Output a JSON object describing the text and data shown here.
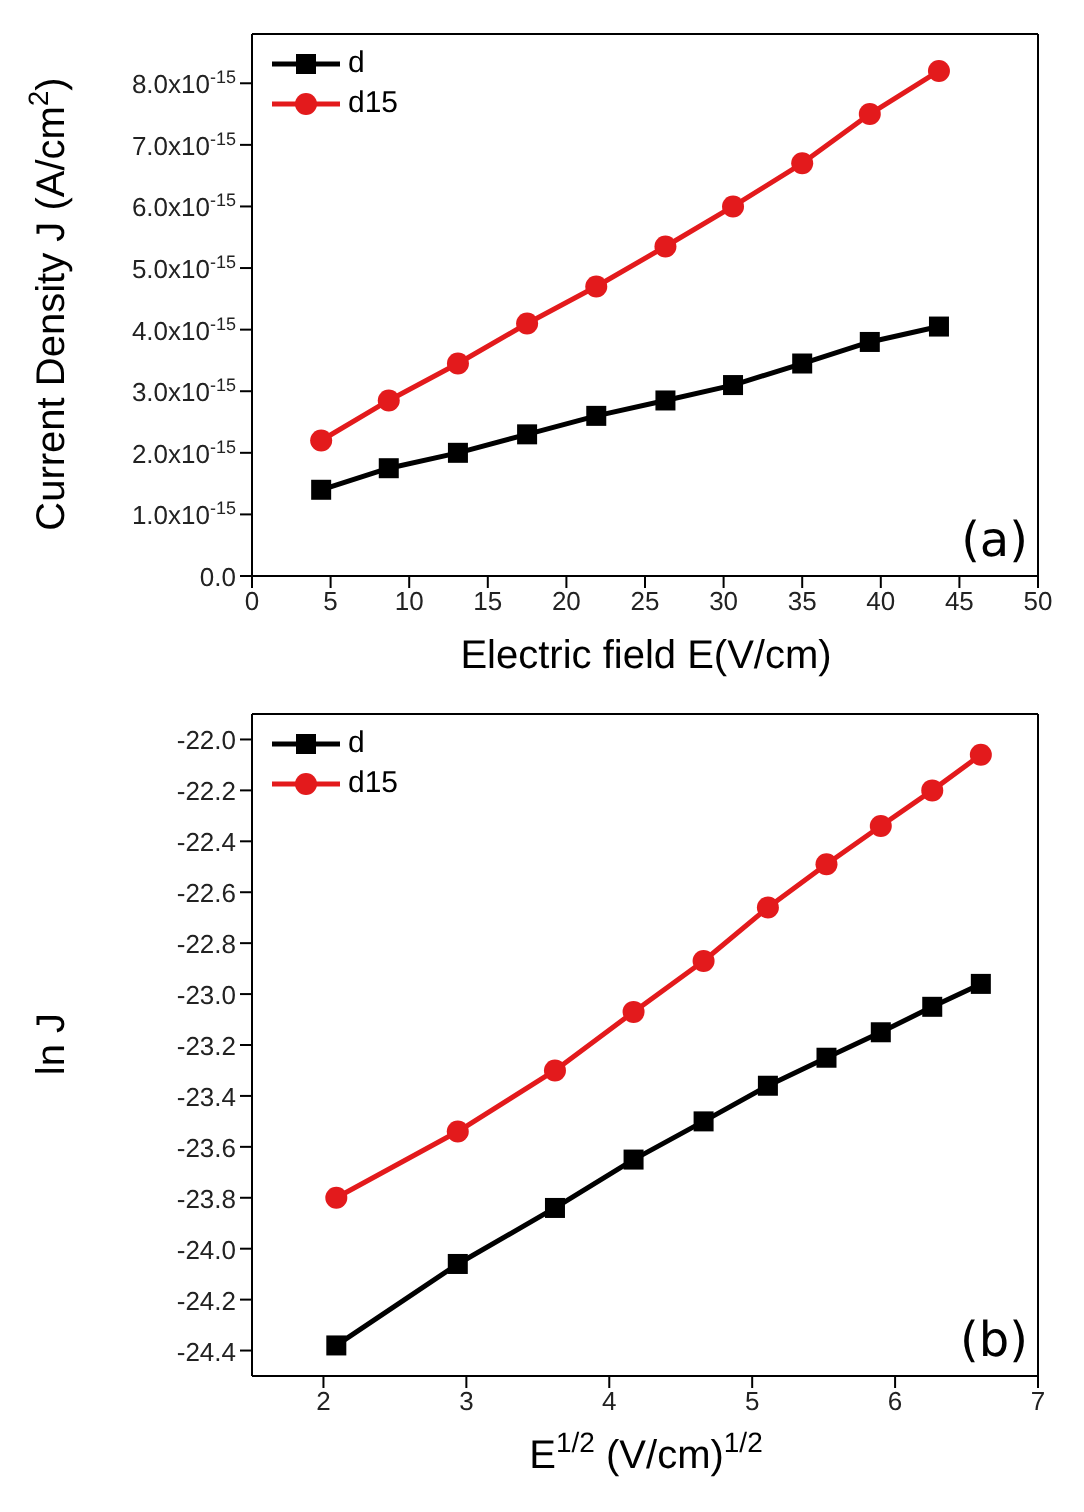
{
  "chart_data": [
    {
      "type": "line",
      "xlabel": "Electric field E(V/cm)",
      "ylabel": "Current Density J (A/cm$^{2}$)",
      "annotations": [
        "(a)"
      ],
      "x": [
        4.4,
        8.7,
        13.1,
        17.5,
        21.9,
        26.3,
        30.6,
        35.0,
        39.3,
        43.7
      ],
      "series": [
        {
          "name": "d",
          "color": "#000000",
          "marker": "square",
          "values": [
            1.4e-15,
            1.75e-15,
            2e-15,
            2.3e-15,
            2.6e-15,
            2.85e-15,
            3.1e-15,
            3.45e-15,
            3.8e-15,
            4.05e-15
          ]
        },
        {
          "name": "d15",
          "color": "#e31a1c",
          "marker": "circle",
          "values": [
            2.2e-15,
            2.85e-15,
            3.45e-15,
            4.1e-15,
            4.7e-15,
            5.35e-15,
            6e-15,
            6.7e-15,
            7.5e-15,
            8.2e-15
          ]
        }
      ],
      "xlim": [
        0,
        50
      ],
      "xticks": [
        0,
        5,
        10,
        15,
        20,
        25,
        30,
        35,
        40,
        45,
        50
      ],
      "ylim": [
        0,
        8.8e-15
      ],
      "yticks": [
        {
          "value": 0,
          "label": "0.0"
        },
        {
          "value": 1e-15,
          "label": "1.0x10$^{-15}$"
        },
        {
          "value": 2e-15,
          "label": "2.0x10$^{-15}$"
        },
        {
          "value": 3e-15,
          "label": "3.0x10$^{-15}$"
        },
        {
          "value": 4e-15,
          "label": "4.0x10$^{-15}$"
        },
        {
          "value": 5e-15,
          "label": "5.0x10$^{-15}$"
        },
        {
          "value": 6e-15,
          "label": "6.0x10$^{-15}$"
        },
        {
          "value": 7e-15,
          "label": "7.0x10$^{-15}$"
        },
        {
          "value": 8e-15,
          "label": "8.0x10$^{-15}$"
        }
      ],
      "grid": false,
      "legend": "top left",
      "line_style": "solid"
    },
    {
      "type": "line",
      "xlabel": "E$^{1/2}$ (V/cm)$^{1/2}$",
      "ylabel": "ln J",
      "annotations": [
        "(b)"
      ],
      "x": [
        2.09,
        2.94,
        3.62,
        4.17,
        4.66,
        5.11,
        5.52,
        5.9,
        6.26,
        6.6
      ],
      "series": [
        {
          "name": "d",
          "color": "#000000",
          "marker": "square",
          "values": [
            -24.38,
            -24.06,
            -23.84,
            -23.65,
            -23.5,
            -23.36,
            -23.25,
            -23.15,
            -23.05,
            -22.96
          ]
        },
        {
          "name": "d15",
          "color": "#e31a1c",
          "marker": "circle",
          "values": [
            -23.8,
            -23.54,
            -23.3,
            -23.07,
            -22.87,
            -22.66,
            -22.49,
            -22.34,
            -22.2,
            -22.06
          ]
        }
      ],
      "xlim": [
        1.5,
        7
      ],
      "xticks": [
        2,
        3,
        4,
        5,
        6,
        7
      ],
      "ylim": [
        -24.5,
        -21.9
      ],
      "yticks": [
        {
          "value": -24.4,
          "label": "-24.4"
        },
        {
          "value": -24.2,
          "label": "-24.2"
        },
        {
          "value": -24.0,
          "label": "-24.0"
        },
        {
          "value": -23.8,
          "label": "-23.8"
        },
        {
          "value": -23.6,
          "label": "-23.6"
        },
        {
          "value": -23.4,
          "label": "-23.4"
        },
        {
          "value": -23.2,
          "label": "-23.2"
        },
        {
          "value": -23.0,
          "label": "-23.0"
        },
        {
          "value": -22.8,
          "label": "-22.8"
        },
        {
          "value": -22.6,
          "label": "-22.6"
        },
        {
          "value": -22.4,
          "label": "-22.4"
        },
        {
          "value": -22.2,
          "label": "-22.2"
        },
        {
          "value": -22.0,
          "label": "-22.0"
        }
      ],
      "grid": false,
      "legend": "top left",
      "line_style": "solid"
    }
  ]
}
